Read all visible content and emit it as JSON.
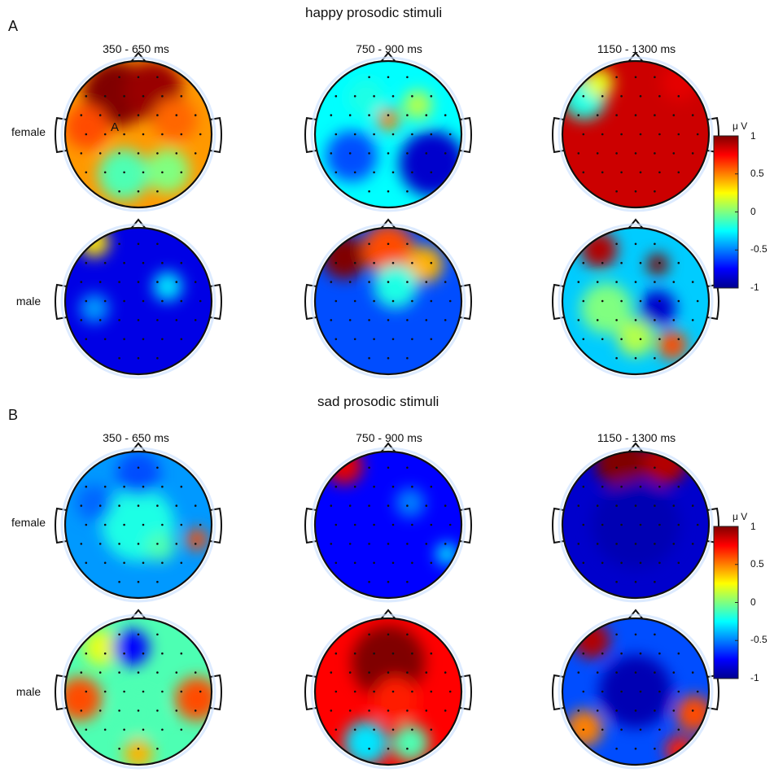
{
  "chart_data": {
    "type": "heatmap",
    "kind": "EEG scalp topography",
    "colormap": "jet",
    "panels": [
      {
        "letter": "A",
        "title": "happy prosodic stimuli",
        "time_windows": [
          "350 - 650 ms",
          "750 - 900 ms",
          "1150 - 1300 ms"
        ],
        "groups": [
          "female",
          "male"
        ],
        "mean_amplitude_uV": [
          [
            0.45,
            -0.25,
            0.85
          ],
          [
            -0.8,
            -0.6,
            -0.35
          ]
        ],
        "colorbar": {
          "unit": "μ V",
          "range": [
            -1,
            1
          ],
          "ticks": [
            "1",
            "0.5",
            "0",
            "-0.5",
            "-1"
          ]
        }
      },
      {
        "letter": "B",
        "title": "sad prosodic stimuli",
        "time_windows": [
          "350 - 650 ms",
          "750 - 900 ms",
          "1150 - 1300 ms"
        ],
        "groups": [
          "female",
          "male"
        ],
        "mean_amplitude_uV": [
          [
            -0.45,
            -0.75,
            -0.85
          ],
          [
            -0.1,
            0.75,
            -0.6
          ]
        ],
        "colorbar": {
          "unit": "μ V",
          "range": [
            -1,
            1
          ],
          "ticks": [
            "1",
            "0.5",
            "0",
            "-0.5",
            "-1"
          ]
        }
      }
    ],
    "annotation": "A"
  }
}
